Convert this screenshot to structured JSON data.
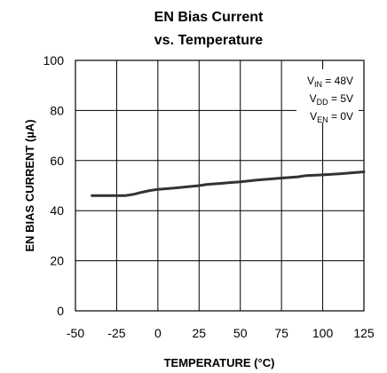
{
  "chart_data": {
    "type": "line",
    "title_line1": "EN Bias Current",
    "title_line2": "vs. Temperature",
    "xlabel": "TEMPERATURE (°C)",
    "ylabel": "EN BIAS CURRENT (µA)",
    "xlim": [
      -50,
      125
    ],
    "ylim": [
      0,
      100
    ],
    "x_ticks": [
      -50,
      -25,
      0,
      25,
      50,
      75,
      100,
      125
    ],
    "y_ticks": [
      0,
      20,
      40,
      60,
      80,
      100
    ],
    "x_tick_labels": [
      "-50",
      "-25",
      "0",
      "25",
      "50",
      "75",
      "100",
      "125"
    ],
    "y_tick_labels": [
      "0",
      "20",
      "40",
      "60",
      "80",
      "100"
    ],
    "grid": true,
    "line_color": "#333333",
    "annotation": {
      "placement": "top-right",
      "lines": [
        {
          "sym": "V",
          "sub": "IN",
          "val": " = 48V"
        },
        {
          "sym": "V",
          "sub": "DD",
          "val": " = 5V"
        },
        {
          "sym": "V",
          "sub": "EN",
          "val": " = 0V"
        }
      ]
    },
    "series": [
      {
        "x": [
          -40,
          -30,
          -20,
          -15,
          -10,
          -5,
          0,
          10,
          25,
          30,
          40,
          50,
          60,
          75,
          85,
          90,
          100,
          110,
          125
        ],
        "y": [
          46,
          46,
          46,
          46.5,
          47.3,
          48,
          48.5,
          49,
          50,
          50.5,
          51,
          51.5,
          52.2,
          53,
          53.5,
          54,
          54.3,
          54.7,
          55.5
        ]
      }
    ]
  }
}
